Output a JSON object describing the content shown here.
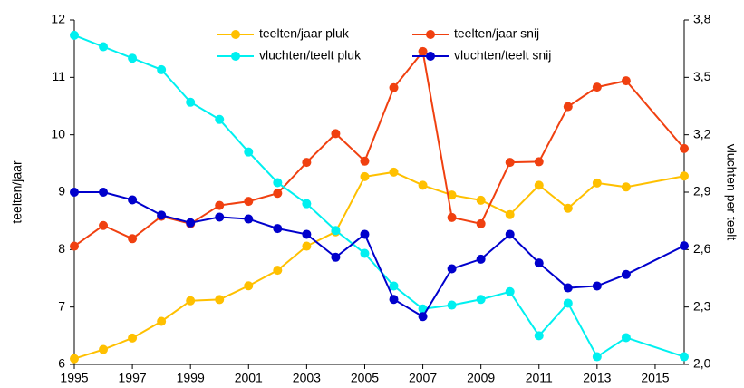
{
  "chart_data": {
    "type": "line",
    "x": [
      1995,
      1996,
      1997,
      1998,
      1999,
      2000,
      2001,
      2002,
      2003,
      2004,
      2005,
      2006,
      2007,
      2008,
      2009,
      2010,
      2011,
      2012,
      2013,
      2014,
      2016
    ],
    "xlim": [
      1995,
      2016
    ],
    "xticks": [
      1995,
      1997,
      1999,
      2001,
      2003,
      2005,
      2007,
      2009,
      2011,
      2013,
      2015
    ],
    "ylabel": "teelten/jaar",
    "y2label": "vluchten  per teelt",
    "ylim": [
      6,
      12
    ],
    "yticks": [
      6,
      7,
      8,
      9,
      10,
      11,
      12
    ],
    "y2lim": [
      2.0,
      3.8
    ],
    "y2ticks": [
      {
        "value": 2.0,
        "label": "2,0"
      },
      {
        "value": 2.3,
        "label": "2,3"
      },
      {
        "value": 2.6,
        "label": "2,6"
      },
      {
        "value": 2.9,
        "label": "2,9"
      },
      {
        "value": 3.2,
        "label": "3,2"
      },
      {
        "value": 3.5,
        "label": "3,5"
      },
      {
        "value": 3.8,
        "label": "3,8"
      }
    ],
    "grid": false,
    "series": [
      {
        "name": "teelten/jaar pluk",
        "color": "#ffc000",
        "values": [
          6.1,
          6.26,
          6.46,
          6.75,
          7.11,
          7.13,
          7.37,
          7.64,
          8.06,
          8.31,
          9.27,
          9.35,
          9.12,
          8.95,
          8.86,
          8.61,
          9.12,
          8.72,
          9.16,
          9.09,
          9.28
        ]
      },
      {
        "name": "teelten/jaar snij",
        "color": "#f04010",
        "values": [
          8.06,
          8.42,
          8.19,
          8.58,
          8.45,
          8.77,
          8.84,
          8.98,
          9.52,
          10.02,
          9.54,
          10.82,
          11.45,
          8.56,
          8.45,
          9.52,
          9.53,
          10.49,
          10.83,
          10.94,
          9.76
        ]
      },
      {
        "name": "vluchten/teelt pluk",
        "color": "#00f0f0",
        "axis": "y2",
        "values": [
          3.72,
          3.66,
          3.6,
          3.54,
          3.37,
          3.28,
          3.11,
          2.95,
          2.84,
          2.7,
          2.58,
          2.41,
          2.29,
          2.31,
          2.34,
          2.38,
          2.15,
          2.32,
          2.04,
          2.14,
          2.04
        ]
      },
      {
        "name": "vluchten/teelt snij",
        "color": "#0000cc",
        "axis": "y2",
        "values": [
          2.9,
          2.9,
          2.86,
          2.78,
          2.74,
          2.77,
          2.76,
          2.71,
          2.68,
          2.56,
          2.68,
          2.34,
          2.25,
          2.5,
          2.55,
          2.68,
          2.53,
          2.4,
          2.41,
          2.47,
          2.62
        ]
      }
    ]
  }
}
